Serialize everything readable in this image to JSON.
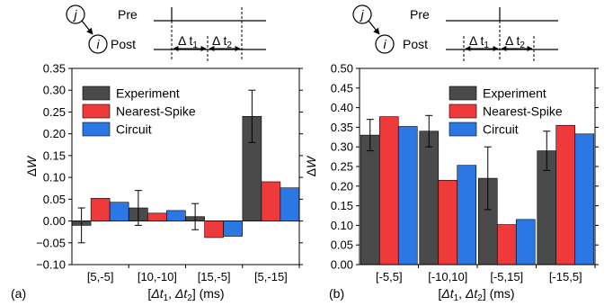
{
  "diagram": {
    "pre_label": "Pre",
    "post_label": "Post",
    "pre_neuron": "j",
    "post_neuron": "i"
  },
  "panels": [
    {
      "panel_label": "(a)",
      "diagram": {
        "dt1_label": "Δ t",
        "dt1_sub": "1",
        "dt2_label": "Δ t",
        "dt2_sub": "2"
      },
      "ylabel_main": "Δ",
      "ylabel_var": "W",
      "xlabel": {
        "open": "[",
        "v1": "Δt",
        "s1": "1",
        "sep": ", ",
        "v2": "Δt",
        "s2": "2",
        "close": "] (ms)"
      }
    },
    {
      "panel_label": "(b)",
      "diagram": {
        "dt1_label": "Δ t",
        "dt1_sub": "1",
        "dt2_label": "Δ t",
        "dt2_sub": "2"
      },
      "ylabel_main": "Δ",
      "ylabel_var": "W",
      "xlabel": {
        "open": "[",
        "v1": "Δt",
        "s1": "1",
        "sep": ", ",
        "v2": "Δt",
        "s2": "2",
        "close": "] (ms)"
      }
    }
  ],
  "colors": {
    "experiment": "#4a4a4a",
    "nearest_spike": "#ee3a3a",
    "circuit": "#2b78e4"
  },
  "chart_data": [
    {
      "type": "bar",
      "categories": [
        "[5,-5]",
        "[10,-10]",
        "[15,-5]",
        "[5,-15]"
      ],
      "ylim": [
        -0.1,
        0.35
      ],
      "yticks": [
        "0.35",
        "0.30",
        "0.25",
        "0.20",
        "0.15",
        "0.10",
        "0.05",
        "0.00",
        "−0.05",
        "−0.10"
      ],
      "ytick_values": [
        0.35,
        0.3,
        0.25,
        0.2,
        0.15,
        0.1,
        0.05,
        0.0,
        -0.05,
        -0.1
      ],
      "legend": "top-left",
      "series": [
        {
          "name": "Experiment",
          "values": [
            -0.01,
            0.03,
            0.01,
            0.24
          ],
          "errors": [
            0.04,
            0.04,
            0.03,
            0.06
          ]
        },
        {
          "name": "Nearest-Spike",
          "values": [
            0.052,
            0.018,
            -0.038,
            0.09
          ]
        },
        {
          "name": "Circuit",
          "values": [
            0.043,
            0.024,
            -0.035,
            0.076
          ]
        }
      ]
    },
    {
      "type": "bar",
      "categories": [
        "[-5,5]",
        "[-10,10]",
        "[-5,15]",
        "[-15,5]"
      ],
      "ylim": [
        0.0,
        0.5
      ],
      "yticks": [
        "0.50",
        "0.45",
        "0.40",
        "0.35",
        "0.30",
        "0.25",
        "0.20",
        "0.15",
        "0.10",
        "0.05",
        "0.00"
      ],
      "ytick_values": [
        0.5,
        0.45,
        0.4,
        0.35,
        0.3,
        0.25,
        0.2,
        0.15,
        0.1,
        0.05,
        0.0
      ],
      "legend": "top-right",
      "series": [
        {
          "name": "Experiment",
          "values": [
            0.33,
            0.34,
            0.22,
            0.29
          ],
          "errors": [
            0.04,
            0.04,
            0.08,
            0.05
          ]
        },
        {
          "name": "Nearest-Spike",
          "values": [
            0.377,
            0.215,
            0.102,
            0.355
          ]
        },
        {
          "name": "Circuit",
          "values": [
            0.352,
            0.253,
            0.115,
            0.333
          ]
        }
      ]
    }
  ]
}
